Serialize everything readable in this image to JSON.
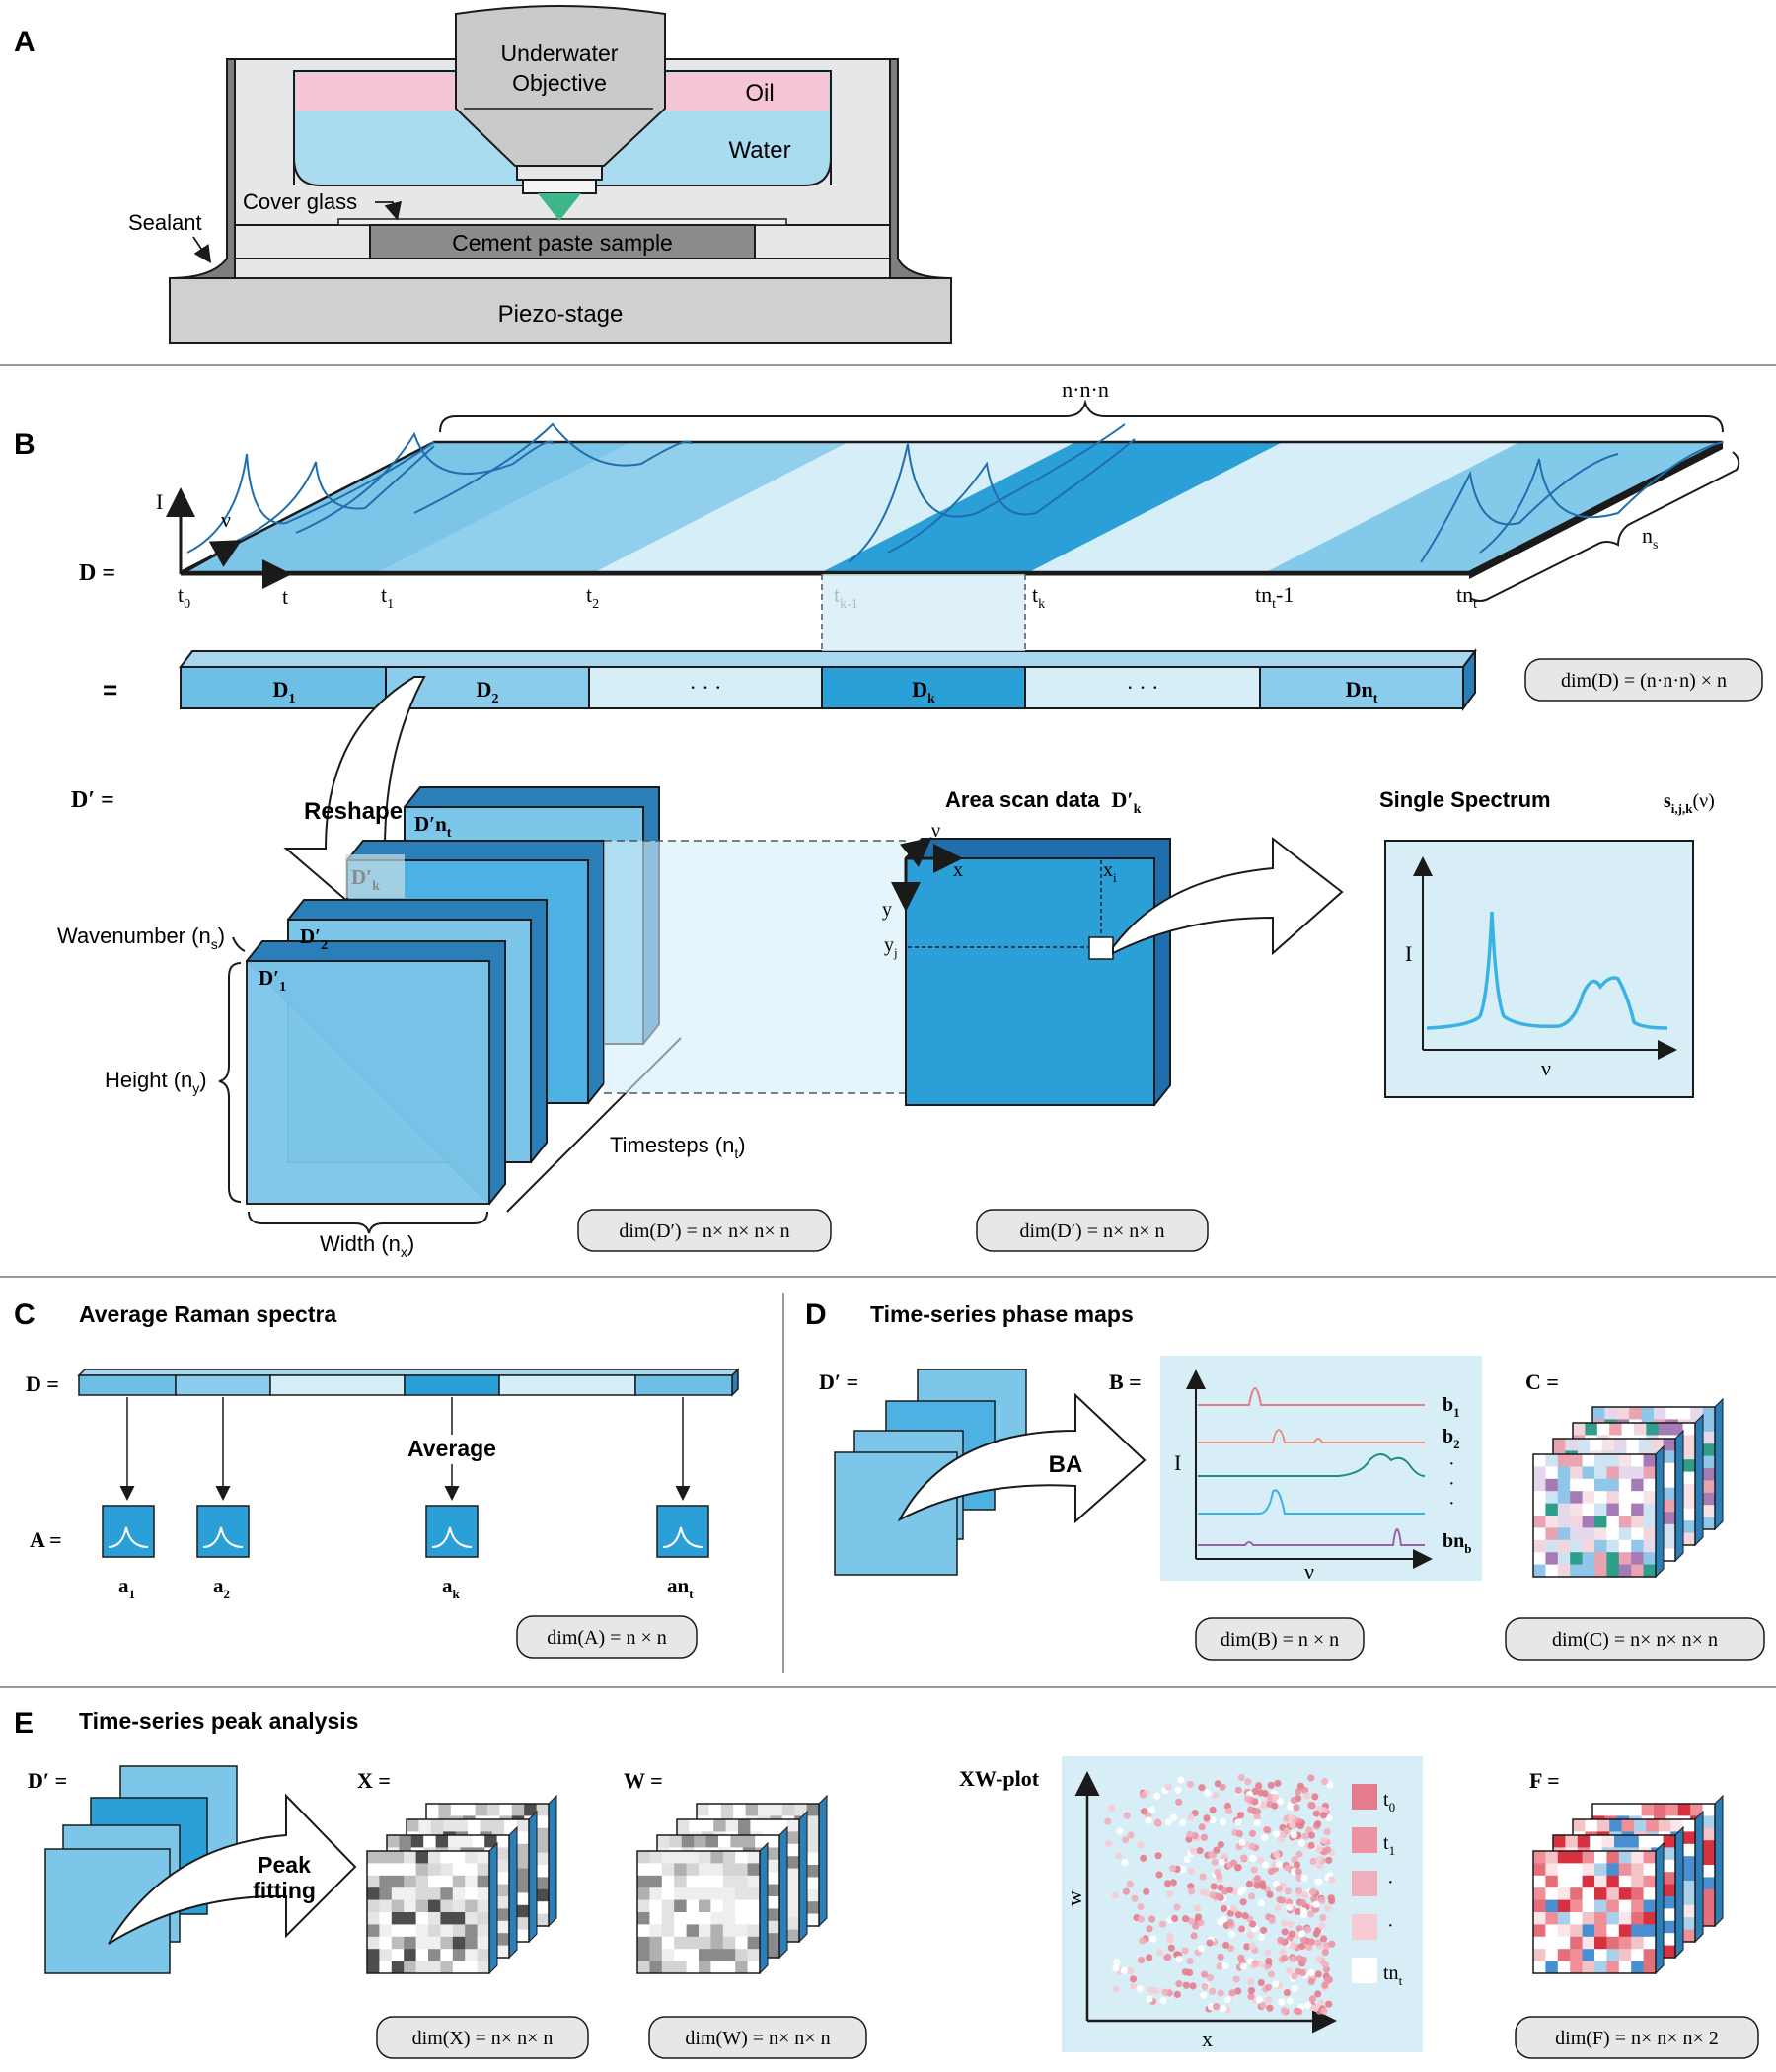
{
  "panel_a": {
    "letter": "A",
    "objective_line1": "Underwater",
    "objective_line2": "Objective",
    "oil": "Oil",
    "water": "Water",
    "cover_glass": "Cover glass",
    "sealant": "Sealant",
    "sample": "Cement paste sample",
    "stage": "Piezo-stage"
  },
  "panel_b": {
    "letter": "B",
    "d_label": "D =",
    "eq": "=",
    "dprime_label": "D′ =",
    "axis_I": "I",
    "axis_nu": "ν",
    "axis_t": "t",
    "t0": "t",
    "t0_sub": "0",
    "t1": "t",
    "t1_sub": "1",
    "t2": "t",
    "t2_sub": "2",
    "tk1": "t",
    "tk1_sub": "k-1",
    "tk": "t",
    "tk_sub": "k",
    "tnt1": "t",
    "tnt1_mid": "n",
    "tnt1_sub": "t",
    "tnt1_tail": "-1",
    "tnt": "t",
    "tnt_mid": "n",
    "tnt_sub": "t",
    "top_brace": "n·n·n",
    "top_brace_subs": [
      "x",
      "y",
      "t"
    ],
    "ns": "n",
    "ns_sub": "s",
    "blocks": [
      "D",
      "D",
      "·  ·  ·",
      "D",
      "·  ·  ·",
      "Dn"
    ],
    "block_subs": [
      "1",
      "2",
      "",
      "k",
      "",
      "t"
    ],
    "dim_d": "dim(D) = (n·n·n) × n",
    "reshape": "Reshape",
    "area_scan": "Area scan data",
    "area_scan_sym": "D′",
    "area_scan_sub": "k",
    "single_spectrum": "Single Spectrum",
    "s_label": "s",
    "s_sub": "i,j,k",
    "s_arg": "(ν)",
    "wavenumber": "Wavenumber (n",
    "height": "Height (n",
    "width": "Width (n",
    "timesteps": "Timesteps (n",
    "cube_labels": [
      "D′",
      "D′",
      "D′",
      "D′n"
    ],
    "cube_subs": [
      "1",
      "2",
      "k",
      "t"
    ],
    "dim_dprime": "dim(D′) = n× n× n× n",
    "dim_dprimek": "dim(D′) = n× n× n",
    "xi": "x",
    "yj": "y",
    "x": "x",
    "y": "y",
    "nu": "ν",
    "spec_I": "I",
    "spec_nu": "ν"
  },
  "panel_c": {
    "letter": "C",
    "title": "Average Raman spectra",
    "d_label": "D =",
    "a_label": "A =",
    "average": "Average",
    "a_labels": [
      "a",
      "a",
      "a",
      "an"
    ],
    "a_subs": [
      "1",
      "2",
      "k",
      "t"
    ],
    "dim_a": "dim(A) = n × n"
  },
  "panel_d": {
    "letter": "D",
    "title": "Time-series phase maps",
    "dprime": "D′ =",
    "b_label": "B =",
    "c_label": "C =",
    "ba": "BA",
    "axis_I": "I",
    "axis_nu": "ν",
    "b_labels": [
      "b",
      "b",
      "·",
      "·",
      "·",
      "bn"
    ],
    "b_subs": [
      "1",
      "2",
      "",
      "",
      "",
      "b"
    ],
    "dim_b": "dim(B) = n × n",
    "dim_c": "dim(C) = n× n× n× n"
  },
  "panel_e": {
    "letter": "E",
    "title": "Time-series peak analysis",
    "dprime": "D′ =",
    "x_label": "X =",
    "w_label": "W =",
    "f_label": "F =",
    "peak1": "Peak",
    "peak2": "fitting",
    "xw_plot": "XW-plot",
    "axis_w": "w",
    "axis_x": "x",
    "legend": [
      "t",
      "t",
      "·",
      "·",
      "tn"
    ],
    "legend_subs": [
      "0",
      "1",
      "",
      "",
      "t"
    ],
    "dim_x": "dim(X) = n× n× n",
    "dim_w": "dim(W) = n× n× n",
    "dim_f": "dim(F) = n× n× n× 2"
  },
  "colors": {
    "oil": "#f6c6d8",
    "water": "#a9dcf1",
    "blue_dark": "#2a9fd8",
    "blue_mid": "#6dbfe6",
    "blue_light": "#d6eef8",
    "panel_bg": "#d8eef7",
    "cube": "#7cc6ea",
    "gray": "#e6e7e8",
    "dark_gray": "#7d7e80",
    "pink": "#e99aae"
  }
}
